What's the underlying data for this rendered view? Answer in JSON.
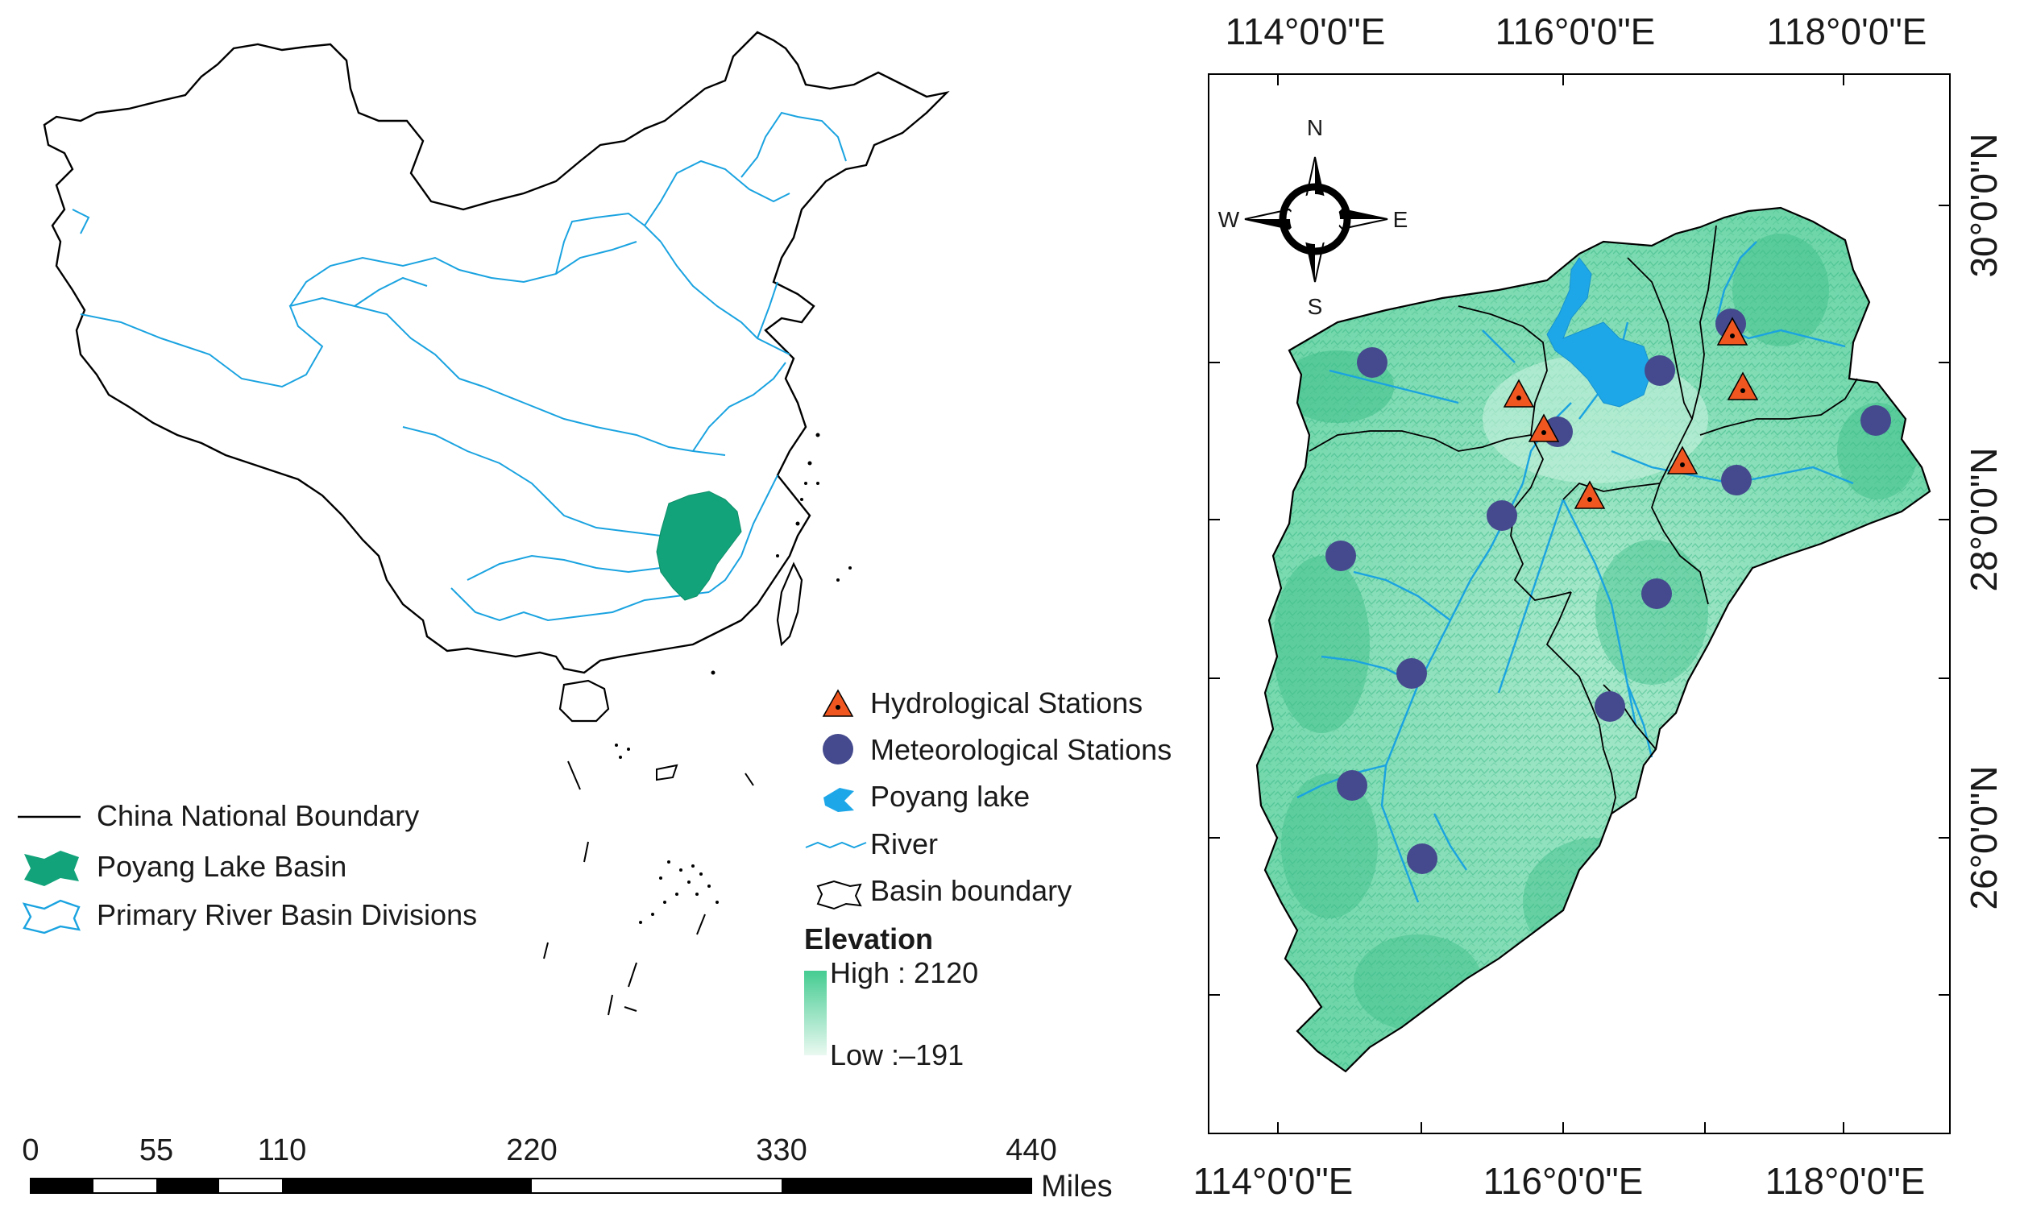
{
  "china_legend": {
    "items": [
      {
        "label": "China National Boundary"
      },
      {
        "label": "Poyang Lake Basin"
      },
      {
        "label": "Primary River Basin Divisions"
      }
    ]
  },
  "scale_bar": {
    "ticks": [
      "0",
      "55",
      "110",
      "220",
      "330",
      "440"
    ],
    "unit": "Miles"
  },
  "basin_legend": {
    "items": [
      {
        "label": "Hydrological Stations"
      },
      {
        "label": "Meteorological Stations"
      },
      {
        "label": "Poyang lake"
      },
      {
        "label": "River"
      },
      {
        "label": "Basin boundary"
      }
    ],
    "elevation": {
      "title": "Elevation",
      "high": "High : 2120",
      "low": "Low :–191"
    }
  },
  "map_frame": {
    "top_labels": [
      "114°0'0\"E",
      "116°0'0\"E",
      "118°0'0\"E"
    ],
    "bottom_labels": [
      "114°0'0\"E",
      "116°0'0\"E",
      "118°0'0\"E"
    ],
    "right_labels": [
      "30°0'0\"N",
      "28°0'0\"N",
      "26°0'0\"N"
    ]
  },
  "north_arrow": {
    "n": "N",
    "s": "S",
    "e": "E",
    "w": "W"
  },
  "colors": {
    "boundary": "#000000",
    "basin_fill": "#12a37a",
    "river": "#1aa3e0",
    "lake": "#1ea7e8",
    "elevation_high": "#4fcf97",
    "elevation_low": "#e6f8ef",
    "terrain": "#7ddbb3",
    "hydro_fill": "#f0561f",
    "meteo_fill": "#444a8d"
  }
}
